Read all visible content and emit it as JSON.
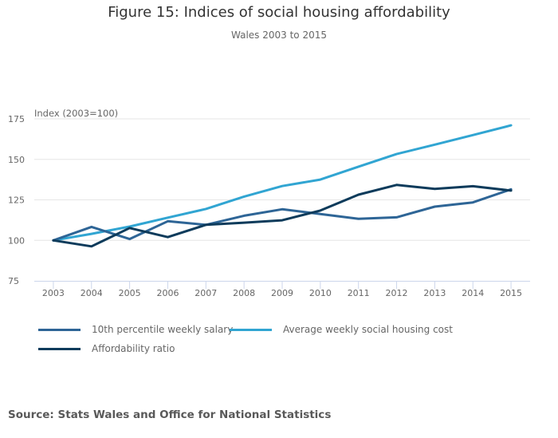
{
  "title": "Figure 15: Indices of social housing affordability",
  "subtitle": "Wales 2003 to 2015",
  "source": "Source: Stats Wales and Office for National Statistics",
  "chart_data": {
    "type": "line",
    "title": "Figure 15: Indices of social housing affordability",
    "subtitle": "Wales 2003 to 2015",
    "xlabel": "",
    "ylabel": "Index (2003=100)",
    "x": [
      "2003",
      "2004",
      "2005",
      "2006",
      "2007",
      "2008",
      "2009",
      "2010",
      "2011",
      "2012",
      "2013",
      "2014",
      "2015"
    ],
    "ylim": [
      75,
      175
    ],
    "yticks": [
      "75",
      "100",
      "125",
      "150",
      "175"
    ],
    "grid": true,
    "legend_position": "bottom-left",
    "series": [
      {
        "name": "10th percentile weekly salary",
        "color": "#2e6596",
        "values": [
          100,
          108.3,
          100.8,
          111.8,
          109.6,
          115.2,
          119.2,
          116.3,
          113.3,
          114.2,
          120.8,
          123.4,
          131.5
        ]
      },
      {
        "name": "Average weekly social housing cost",
        "color": "#31a5d2",
        "values": [
          100,
          104.0,
          108.5,
          114.0,
          119.4,
          127.0,
          133.5,
          137.5,
          145.5,
          153.3,
          159.1,
          165.0,
          171.0
        ]
      },
      {
        "name": "Affordability ratio",
        "color": "#0d3b5b",
        "values": [
          100,
          96.3,
          107.6,
          102.0,
          109.6,
          110.9,
          112.4,
          118.4,
          128.2,
          134.2,
          131.8,
          133.4,
          130.7
        ]
      }
    ]
  }
}
